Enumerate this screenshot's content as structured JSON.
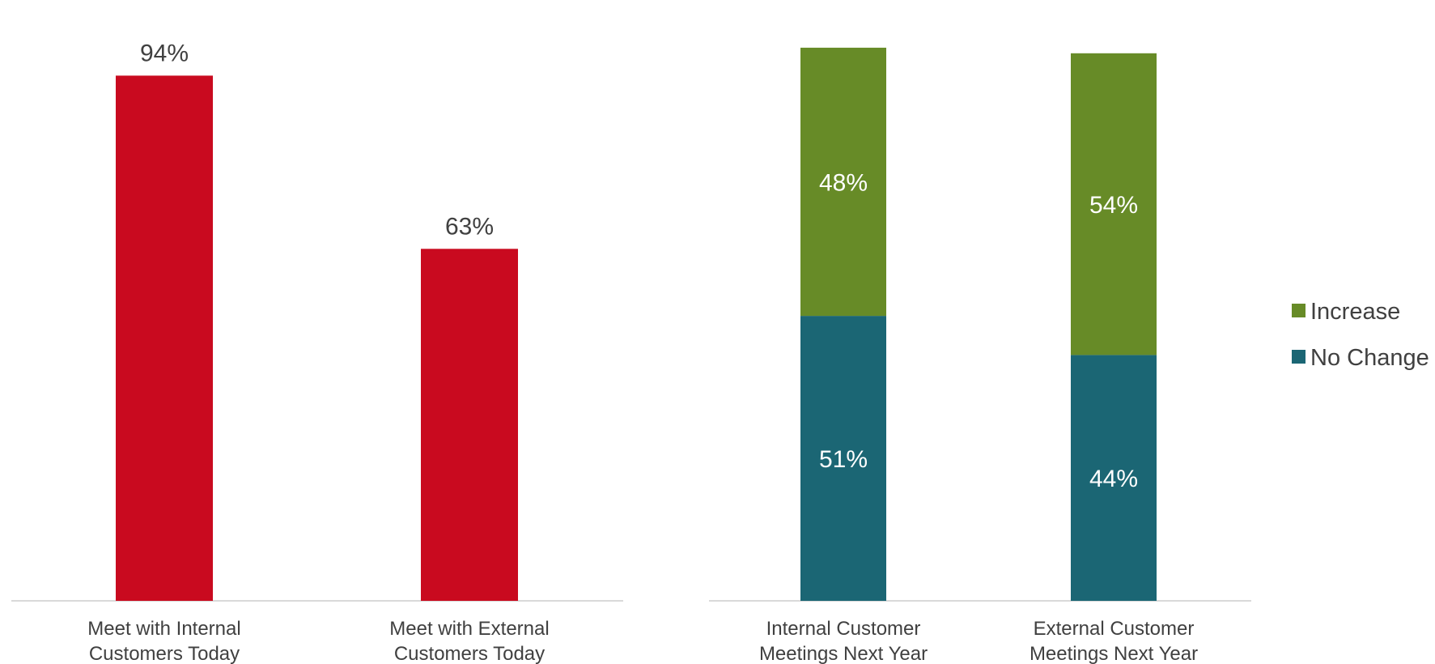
{
  "chart_data": [
    {
      "type": "bar",
      "categories": [
        [
          "Meet with Internal",
          "Customers Today"
        ],
        [
          "Meet with External",
          "Customers Today"
        ]
      ],
      "values": [
        94,
        63
      ],
      "data_labels": [
        "94%",
        "63%"
      ],
      "ylim": [
        0,
        100
      ],
      "grid": false,
      "colors": {
        "bar": "#C90A1F",
        "label": "#404040",
        "axis": "#D9D9D9"
      }
    },
    {
      "type": "bar",
      "stacked": true,
      "categories": [
        [
          "Internal Customer",
          "Meetings Next Year"
        ],
        [
          "External Customer",
          "Meetings Next Year"
        ]
      ],
      "series": [
        {
          "name": "No Change",
          "values": [
            51,
            44
          ],
          "labels": [
            "51%",
            "44%"
          ],
          "color": "#1B6674"
        },
        {
          "name": "Increase",
          "values": [
            48,
            54
          ],
          "labels": [
            "48%",
            "54%"
          ],
          "color": "#678B27"
        }
      ],
      "ylim": [
        0,
        100
      ],
      "grid": false,
      "legend": {
        "position": "right",
        "order": [
          "Increase",
          "No Change"
        ]
      },
      "colors": {
        "label": "#FFFFFF",
        "axis": "#D9D9D9"
      }
    }
  ]
}
